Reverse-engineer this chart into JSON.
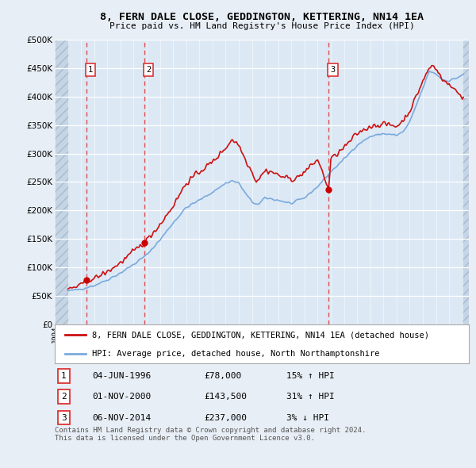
{
  "title": "8, FERN DALE CLOSE, GEDDINGTON, KETTERING, NN14 1EA",
  "subtitle": "Price paid vs. HM Land Registry's House Price Index (HPI)",
  "background_color": "#e8eef5",
  "plot_bg_color": "#dce8f4",
  "hatch_bg_color": "#c5d5e5",
  "ylim": [
    0,
    500000
  ],
  "yticks": [
    0,
    50000,
    100000,
    150000,
    200000,
    250000,
    300000,
    350000,
    400000,
    450000,
    500000
  ],
  "xlim_start": 1994.0,
  "xlim_end": 2025.5,
  "sale_dates": [
    1996.42,
    2000.83,
    2014.84
  ],
  "sale_prices": [
    78000,
    143500,
    237000
  ],
  "sale_labels": [
    "1",
    "2",
    "3"
  ],
  "vline_color": "#dd3333",
  "sale_marker_color": "#cc0000",
  "red_line_color": "#cc1111",
  "blue_line_color": "#7aaadd",
  "legend_label_red": "8, FERN DALE CLOSE, GEDDINGTON, KETTERING, NN14 1EA (detached house)",
  "legend_label_blue": "HPI: Average price, detached house, North Northamptonshire",
  "table_rows": [
    [
      "1",
      "04-JUN-1996",
      "£78,000",
      "15% ↑ HPI"
    ],
    [
      "2",
      "01-NOV-2000",
      "£143,500",
      "31% ↑ HPI"
    ],
    [
      "3",
      "06-NOV-2014",
      "£237,000",
      "3% ↓ HPI"
    ]
  ],
  "footer_text": "Contains HM Land Registry data © Crown copyright and database right 2024.\nThis data is licensed under the Open Government Licence v3.0."
}
